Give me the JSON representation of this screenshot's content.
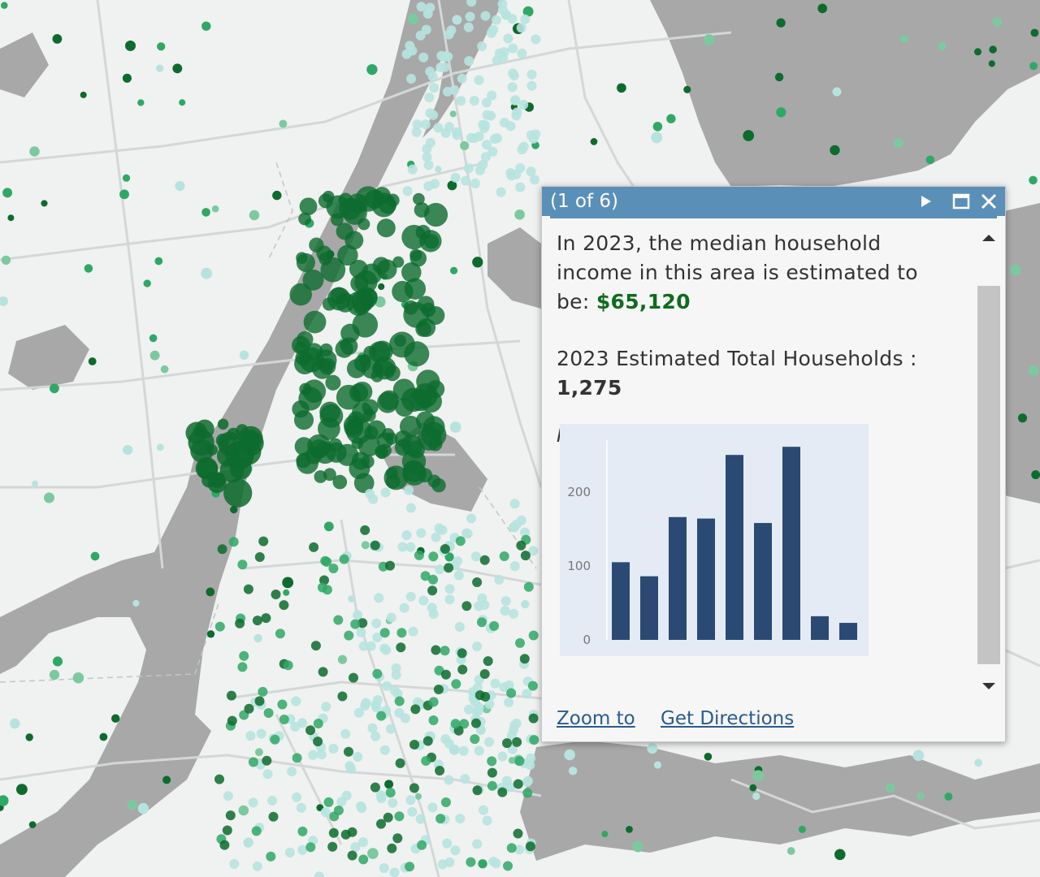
{
  "popup": {
    "counter": "(1 of 6)",
    "income_text": "In 2023, the median household income in this area is estimated to be: ",
    "income_value": "$65,120",
    "households_label": "2023 Estimated Total Households :",
    "households_value": "1,275",
    "chart_caption": "Households by median income",
    "links": {
      "zoom_to": "Zoom to",
      "get_directions": "Get Directions"
    }
  },
  "icons": {
    "next": "play-icon",
    "maximize": "maximize-icon",
    "close": "close-icon",
    "scroll_up": "caret-up-icon",
    "scroll_down": "caret-down-icon"
  },
  "colors": {
    "header": "#5a8fb8",
    "income_value": "#0f6b1f",
    "bars": "#2b4a73",
    "map_dark_green": "#0d6b2e",
    "map_mid_green": "#2fa866",
    "map_light_green": "#7cc9a0",
    "map_pale_teal": "#b7e3df",
    "water": "#a9a9a9",
    "land": "#f0f1f1"
  },
  "chart_data": {
    "type": "bar",
    "values": [
      105,
      86,
      166,
      164,
      250,
      158,
      261,
      32,
      23
    ],
    "ylim": [
      0,
      270
    ],
    "yticks": [
      0,
      100,
      200
    ],
    "grid": false,
    "legend": "none"
  }
}
